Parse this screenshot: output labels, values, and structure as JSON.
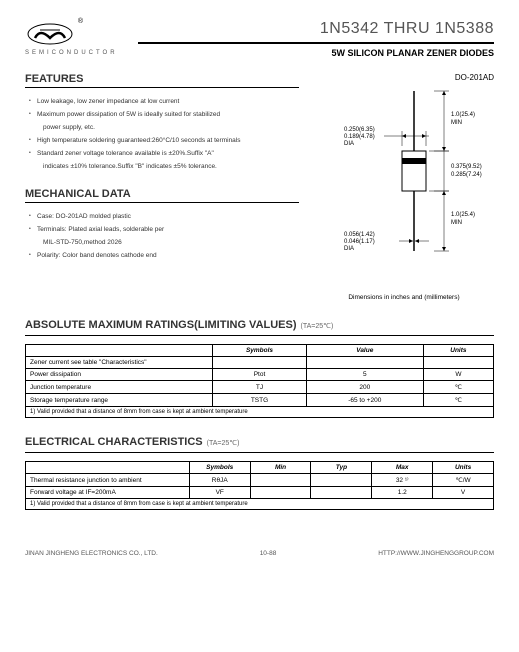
{
  "header": {
    "semiconductor": "SEMICONDUCTOR",
    "reg": "®",
    "main_title": "1N5342 THRU 1N5388",
    "sub_title": "5W SILICON PLANAR ZENER DIODES"
  },
  "features": {
    "title": "FEATURES",
    "items": [
      "Low leakage, low zener impedance at low current",
      "Maximum power dissipation of 5W is ideally suited for stabilized",
      "power supply, etc.",
      "High temperature soldering guaranteed:260°C/10 seconds at terminals",
      "Standard zener voltage tolerance available is ±20%.Suffix \"A\"",
      "indicates ±10% tolerance.Suffix \"B\" indicates ±5% tolerance."
    ],
    "indent_flags": [
      false,
      false,
      true,
      false,
      false,
      true
    ]
  },
  "mechanical": {
    "title": "MECHANICAL DATA",
    "items": [
      "Case: DO-201AD molded plastic",
      "Terminals: Plated axial leads, solderable per",
      "MIL-STD-750,method 2026",
      "Polarity: Color band denotes cathode end"
    ],
    "indent_flags": [
      false,
      false,
      true,
      false
    ]
  },
  "package": {
    "label": "DO-201AD",
    "dims": {
      "d1a": "0.250(6.35)",
      "d1b": "0.189(4.78)",
      "d1l": "DIA",
      "len_top": "1.0(25.4)",
      "len_top_l": "MIN",
      "body_a": "0.375(9.52)",
      "body_b": "0.285(7.24)",
      "len_bot": "1.0(25.4)",
      "len_bot_l": "MIN",
      "d2a": "0.056(1.42)",
      "d2b": "0.046(1.17)",
      "d2l": "DIA"
    },
    "caption": "Dimensions in inches and (millimeters)"
  },
  "ratings": {
    "title": "ABSOLUTE MAXIMUM RATINGS(LIMITING VALUES)",
    "ta": "(TA=25℃)",
    "headers": [
      "",
      "Symbols",
      "Value",
      "Units"
    ],
    "rows": [
      [
        "Zener current see table \"Characteristics\"",
        "",
        "",
        ""
      ],
      [
        "Power dissipation",
        "Ptot",
        "5",
        "W"
      ],
      [
        "Junction temperature",
        "TJ",
        "200",
        "℃"
      ],
      [
        "Storage temperature range",
        "TSTG",
        "-65 to +200",
        "℃"
      ]
    ],
    "note": "1) Valid provided that a distance of 8mm from case is kept at ambient temperature"
  },
  "electrical": {
    "title": "ELECTRICAL CHARACTERISTICS",
    "ta": "(TA=25℃)",
    "headers": [
      "",
      "Symbols",
      "Min",
      "Typ",
      "Max",
      "Units"
    ],
    "rows": [
      [
        "Thermal resistance junction to ambient",
        "RθJA",
        "",
        "",
        "32 ¹⁾",
        "℃/W"
      ],
      [
        "Forward voltage at IF=200mA",
        "VF",
        "",
        "",
        "1.2",
        "V"
      ]
    ],
    "note": "1) Valid provided that a distance of 8mm from case is kept at ambient temperature"
  },
  "footer": {
    "left": "JINAN JINGHENG ELECTRONICS CO., LTD.",
    "center": "10-88",
    "right": "HTTP://WWW.JINGHENGGROUP.COM"
  },
  "colors": {
    "line": "#000000"
  }
}
